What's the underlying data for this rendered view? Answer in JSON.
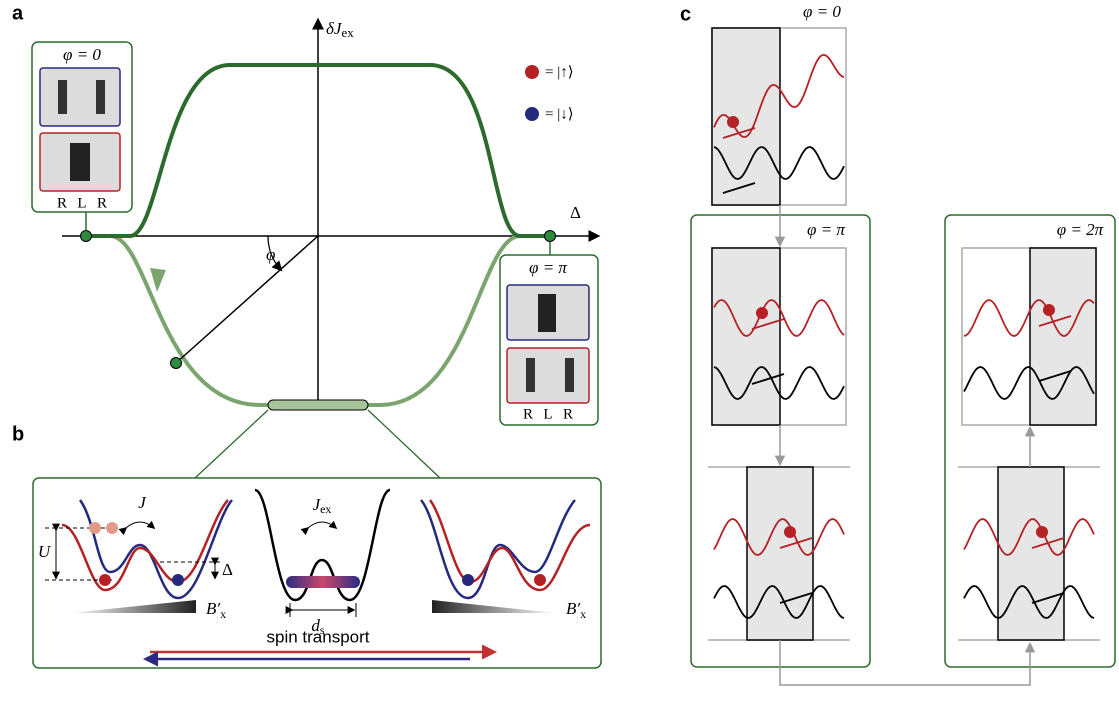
{
  "panel_a": {
    "label": "a",
    "y_axis_label": "δJ",
    "y_axis_sub": "ex",
    "x_axis_label": "Δ",
    "angle_label": "φ",
    "legend": {
      "up": "= |↑⟩",
      "down": "= |↓⟩"
    },
    "inset_left": {
      "title": "φ = 0",
      "sites": [
        "R",
        "L",
        "R"
      ]
    },
    "inset_right": {
      "title": "φ = π",
      "sites": [
        "R",
        "L",
        "R"
      ]
    }
  },
  "panel_b": {
    "label": "b",
    "coupling": "J",
    "exchange": "J",
    "exchange_sub": "ex",
    "interaction": "U",
    "offset": "Δ",
    "gradient_left": "B′",
    "gradient_left_sub": "x",
    "gradient_right": "B′",
    "gradient_right_sub": "x",
    "distance": "d",
    "distance_sub": "s",
    "transport": "spin transport"
  },
  "panel_c": {
    "label": "c",
    "stages": [
      "φ = 0",
      "φ = π",
      "φ = 2π"
    ]
  }
}
